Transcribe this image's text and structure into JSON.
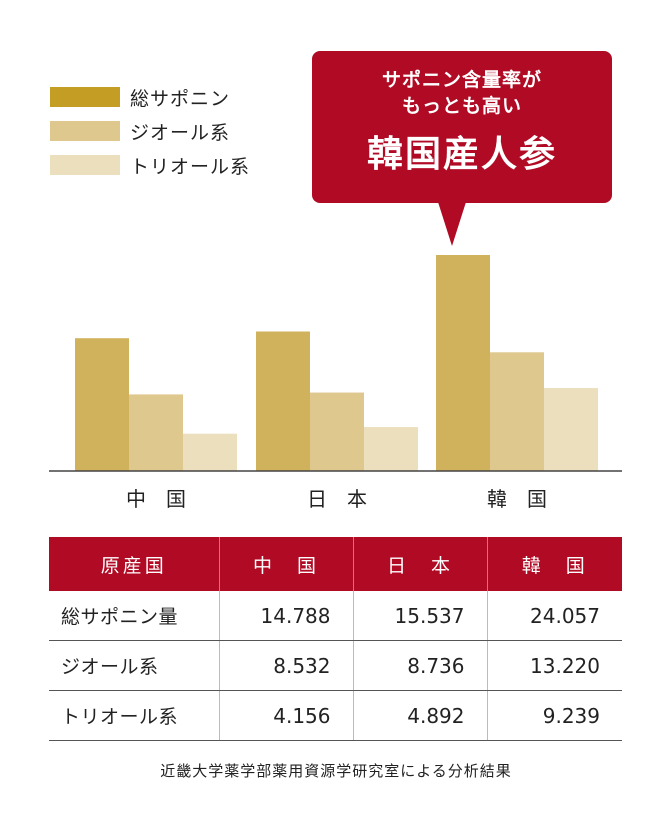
{
  "legend": [
    {
      "label": "総サポニン",
      "color": "#c49d24"
    },
    {
      "label": "ジオール系",
      "color": "#dfc88e"
    },
    {
      "label": "トリオール系",
      "color": "#ebdfbd"
    }
  ],
  "callout": {
    "line1": "サポニン含量率が",
    "line2": "もっとも高い",
    "title": "韓国産人参",
    "color": "#b00a24"
  },
  "chart_data": {
    "type": "bar",
    "categories": [
      "中　国",
      "日　本",
      "韓　国"
    ],
    "series": [
      {
        "name": "総サポニン",
        "values": [
          14.788,
          15.537,
          24.057
        ],
        "color": "#d0b15c"
      },
      {
        "name": "ジオール系",
        "values": [
          8.532,
          8.736,
          13.22
        ],
        "color": "#dfc88e"
      },
      {
        "name": "トリオール系",
        "values": [
          4.156,
          4.892,
          9.239
        ],
        "color": "#ebdfbd"
      }
    ],
    "ylim": [
      0,
      25
    ]
  },
  "table": {
    "headers": [
      "原産国",
      "中　国",
      "日　本",
      "韓　国"
    ],
    "rows": [
      {
        "label": "総サポニン量",
        "values": [
          "14.788",
          "15.537",
          "24.057"
        ]
      },
      {
        "label": "ジオール系",
        "values": [
          "8.532",
          "8.736",
          "13.220"
        ]
      },
      {
        "label": "トリオール系",
        "values": [
          "4.156",
          "4.892",
          "9.239"
        ]
      }
    ]
  },
  "source": "近畿大学薬学部薬用資源学研究室による分析結果"
}
